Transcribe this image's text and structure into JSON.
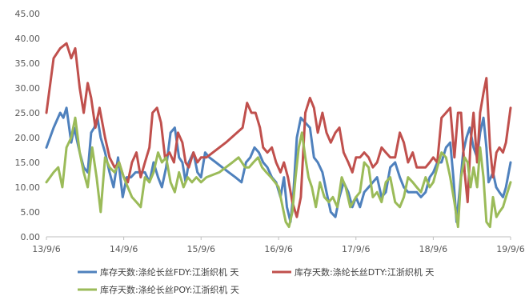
{
  "chart_data": {
    "type": "line",
    "title": "",
    "xlabel": "",
    "ylabel": "",
    "ylim": [
      0,
      45
    ],
    "yticks": [
      "0.00",
      "5.00",
      "10.00",
      "15.00",
      "20.00",
      "25.00",
      "30.00",
      "35.00",
      "40.00",
      "45.00"
    ],
    "xlim": [
      "2013-09-06",
      "2019-09-06"
    ],
    "xticks": [
      "13/9/6",
      "14/9/6",
      "15/9/6",
      "16/9/6",
      "17/9/6",
      "18/9/6",
      "19/9/6"
    ],
    "grid": false,
    "legend_position": "bottom",
    "series": [
      {
        "name": "库存天数:涤纶长丝FDY:江浙织机 天",
        "color": "#4F81BD",
        "x": [
          "2013-09-06",
          "2013-10-10",
          "2013-11-10",
          "2013-11-25",
          "2013-12-10",
          "2014-01-01",
          "2014-01-15",
          "2014-02-10",
          "2014-03-01",
          "2014-03-20",
          "2014-04-05",
          "2014-04-20",
          "2014-05-05",
          "2014-05-20",
          "2014-06-10",
          "2014-07-01",
          "2014-07-20",
          "2014-08-10",
          "2014-09-01",
          "2014-09-20",
          "2014-10-10",
          "2014-11-01",
          "2014-11-20",
          "2014-12-15",
          "2015-01-05",
          "2015-01-25",
          "2015-02-15",
          "2015-03-05",
          "2015-03-25",
          "2015-04-15",
          "2015-05-05",
          "2015-05-25",
          "2015-06-10",
          "2015-06-25",
          "2015-07-10",
          "2015-08-01",
          "2015-08-20",
          "2015-09-06",
          "2015-09-25",
          "2015-10-15",
          "2015-11-15",
          "2015-12-15",
          "2016-01-15",
          "2016-02-15",
          "2016-03-15",
          "2016-04-05",
          "2016-04-25",
          "2016-05-15",
          "2016-06-05",
          "2016-06-25",
          "2016-07-15",
          "2016-08-05",
          "2016-08-25",
          "2016-09-15",
          "2016-10-01",
          "2016-10-15",
          "2016-11-01",
          "2016-11-15",
          "2016-12-01",
          "2016-12-20",
          "2017-01-10",
          "2017-02-01",
          "2017-02-20",
          "2017-03-10",
          "2017-04-01",
          "2017-04-20",
          "2017-05-10",
          "2017-06-01",
          "2017-06-20",
          "2017-07-10",
          "2017-08-01",
          "2017-08-20",
          "2017-09-06",
          "2017-09-25",
          "2017-10-15",
          "2017-11-05",
          "2017-11-25",
          "2017-12-15",
          "2018-01-05",
          "2018-01-25",
          "2018-02-15",
          "2018-03-10",
          "2018-04-01",
          "2018-04-20",
          "2018-05-10",
          "2018-06-01",
          "2018-06-20",
          "2018-07-10",
          "2018-08-01",
          "2018-08-20",
          "2018-09-06",
          "2018-09-25",
          "2018-10-15",
          "2018-11-05",
          "2018-11-25",
          "2018-12-10",
          "2018-12-25",
          "2019-01-10",
          "2019-01-25",
          "2019-02-10",
          "2019-02-25",
          "2019-03-15",
          "2019-04-01",
          "2019-04-15",
          "2019-05-01",
          "2019-05-15",
          "2019-05-25",
          "2019-06-05",
          "2019-06-15",
          "2019-06-30",
          "2019-07-15",
          "2019-08-01",
          "2019-08-15",
          "2019-09-06"
        ],
        "y": [
          18,
          22,
          25,
          24,
          26,
          19,
          22,
          17,
          14,
          13,
          21,
          22,
          24,
          20,
          17,
          13,
          10,
          16,
          8,
          12,
          12,
          13,
          13,
          13,
          11,
          15,
          12,
          10,
          14,
          21,
          22,
          16,
          15,
          11,
          15,
          17,
          13,
          12,
          17,
          16,
          15,
          14,
          13,
          12,
          11,
          15,
          16,
          18,
          17,
          15,
          14,
          12,
          11,
          8,
          12,
          6,
          3,
          9,
          20,
          24,
          23,
          22,
          16,
          15,
          13,
          9,
          5,
          4,
          8,
          11,
          9,
          6,
          8,
          6,
          9,
          10,
          11,
          12,
          8,
          9,
          14,
          15,
          12,
          10,
          9,
          9,
          9,
          8,
          9,
          12,
          13,
          15,
          15,
          18,
          19,
          12,
          3,
          10,
          17,
          20,
          22,
          18,
          16,
          21,
          24,
          18,
          11,
          12,
          13,
          10,
          9,
          8,
          10,
          15
        ]
      },
      {
        "name": "库存天数:涤纶长丝DTY:江浙织机 天",
        "color": "#C0504D",
        "x": [
          "2013-09-06",
          "2013-10-10",
          "2013-11-10",
          "2013-12-10",
          "2014-01-01",
          "2014-01-20",
          "2014-02-10",
          "2014-03-01",
          "2014-03-20",
          "2014-04-05",
          "2014-04-25",
          "2014-05-15",
          "2014-06-10",
          "2014-07-01",
          "2014-07-25",
          "2014-08-15",
          "2014-09-06",
          "2014-09-25",
          "2014-10-15",
          "2014-11-05",
          "2014-11-25",
          "2014-12-15",
          "2015-01-05",
          "2015-01-20",
          "2015-02-10",
          "2015-03-01",
          "2015-03-20",
          "2015-04-10",
          "2015-05-01",
          "2015-05-20",
          "2015-06-10",
          "2015-06-25",
          "2015-07-10",
          "2015-08-01",
          "2015-08-20",
          "2015-09-06",
          "2015-10-01",
          "2016-01-01",
          "2016-03-20",
          "2016-04-10",
          "2016-05-01",
          "2016-05-20",
          "2016-06-10",
          "2016-06-25",
          "2016-07-15",
          "2016-08-05",
          "2016-08-25",
          "2016-09-15",
          "2016-10-01",
          "2016-10-20",
          "2016-11-10",
          "2016-12-01",
          "2016-12-20",
          "2017-01-10",
          "2017-02-01",
          "2017-02-20",
          "2017-03-10",
          "2017-04-01",
          "2017-04-20",
          "2017-05-10",
          "2017-06-01",
          "2017-06-20",
          "2017-07-10",
          "2017-08-01",
          "2017-08-20",
          "2017-09-06",
          "2017-09-25",
          "2017-10-15",
          "2017-11-05",
          "2017-11-25",
          "2017-12-15",
          "2018-01-05",
          "2018-01-25",
          "2018-02-15",
          "2018-03-10",
          "2018-04-01",
          "2018-04-20",
          "2018-05-10",
          "2018-06-01",
          "2018-06-20",
          "2018-07-10",
          "2018-08-01",
          "2018-08-20",
          "2018-09-06",
          "2018-09-25",
          "2018-10-15",
          "2018-11-05",
          "2018-11-25",
          "2018-12-15",
          "2019-01-01",
          "2019-01-15",
          "2019-02-01",
          "2019-02-15",
          "2019-03-01",
          "2019-03-15",
          "2019-04-01",
          "2019-04-15",
          "2019-05-01",
          "2019-05-15",
          "2019-06-01",
          "2019-06-15",
          "2019-07-01",
          "2019-07-15",
          "2019-08-01",
          "2019-08-15",
          "2019-09-06"
        ],
        "y": [
          25,
          36,
          38,
          39,
          36,
          38,
          30,
          25,
          31,
          28,
          22,
          26,
          20,
          16,
          14,
          15,
          12,
          11,
          15,
          17,
          12,
          15,
          18,
          25,
          26,
          23,
          16,
          17,
          15,
          21,
          19,
          15,
          14,
          17,
          15,
          16,
          16,
          19,
          22,
          27,
          25,
          25,
          22,
          18,
          17,
          18,
          15,
          13,
          15,
          12,
          7,
          4,
          8,
          25,
          28,
          26,
          21,
          25,
          21,
          19,
          21,
          22,
          17,
          15,
          13,
          16,
          16,
          17,
          16,
          14,
          15,
          18,
          17,
          16,
          16,
          21,
          19,
          15,
          17,
          14,
          14,
          14,
          15,
          16,
          15,
          24,
          25,
          26,
          16,
          25,
          25,
          13,
          7,
          19,
          25,
          15,
          25,
          29,
          32,
          18,
          12,
          17,
          18,
          17,
          19,
          26
        ]
      },
      {
        "name": "库存天数:涤纶长丝POY:江浙织机 天",
        "color": "#9BBB59",
        "x": [
          "2013-09-06",
          "2013-10-10",
          "2013-11-01",
          "2013-11-20",
          "2013-12-10",
          "2014-01-01",
          "2014-01-20",
          "2014-02-10",
          "2014-03-01",
          "2014-03-20",
          "2014-04-10",
          "2014-05-01",
          "2014-05-20",
          "2014-06-10",
          "2014-07-01",
          "2014-07-25",
          "2014-08-15",
          "2014-09-06",
          "2014-09-25",
          "2014-10-15",
          "2014-11-05",
          "2014-11-25",
          "2014-12-15",
          "2015-01-05",
          "2015-01-25",
          "2015-02-15",
          "2015-03-05",
          "2015-03-25",
          "2015-04-15",
          "2015-05-05",
          "2015-05-25",
          "2015-06-15",
          "2015-07-05",
          "2015-07-25",
          "2015-08-15",
          "2015-09-06",
          "2015-10-01",
          "2015-12-01",
          "2016-01-01",
          "2016-02-01",
          "2016-03-01",
          "2016-04-01",
          "2016-04-20",
          "2016-05-10",
          "2016-06-01",
          "2016-06-20",
          "2016-07-10",
          "2016-08-01",
          "2016-08-20",
          "2016-09-06",
          "2016-09-25",
          "2016-10-10",
          "2016-10-25",
          "2016-11-10",
          "2016-11-25",
          "2016-12-10",
          "2016-12-25",
          "2017-01-10",
          "2017-01-25",
          "2017-02-10",
          "2017-03-01",
          "2017-03-20",
          "2017-04-10",
          "2017-05-01",
          "2017-05-20",
          "2017-06-10",
          "2017-07-01",
          "2017-07-20",
          "2017-08-10",
          "2017-09-06",
          "2017-09-25",
          "2017-10-15",
          "2017-11-05",
          "2017-11-25",
          "2017-12-15",
          "2018-01-05",
          "2018-01-25",
          "2018-02-15",
          "2018-03-10",
          "2018-04-01",
          "2018-04-20",
          "2018-05-10",
          "2018-06-01",
          "2018-06-20",
          "2018-07-10",
          "2018-08-01",
          "2018-08-20",
          "2018-09-06",
          "2018-09-25",
          "2018-10-15",
          "2018-11-05",
          "2018-11-25",
          "2018-12-15",
          "2019-01-01",
          "2019-01-15",
          "2019-02-01",
          "2019-02-15",
          "2019-03-01",
          "2019-03-15",
          "2019-04-01",
          "2019-04-15",
          "2019-05-01",
          "2019-05-15",
          "2019-06-01",
          "2019-06-15",
          "2019-07-01",
          "2019-07-15",
          "2019-08-01",
          "2019-08-15",
          "2019-09-06"
        ],
        "y": [
          11,
          13,
          14,
          10,
          18,
          20,
          24,
          17,
          13,
          10,
          18,
          12,
          5,
          16,
          14,
          13,
          15,
          12,
          10,
          8,
          7,
          6,
          12,
          11,
          13,
          17,
          15,
          16,
          11,
          9,
          13,
          10,
          12,
          11,
          12,
          11,
          12,
          13,
          14,
          15,
          16,
          14,
          14,
          15,
          16,
          14,
          13,
          12,
          11,
          10,
          6,
          3,
          2,
          5,
          12,
          18,
          21,
          16,
          12,
          10,
          6,
          11,
          8,
          7,
          8,
          6,
          12,
          10,
          6,
          8,
          9,
          15,
          14,
          8,
          9,
          7,
          11,
          12,
          7,
          6,
          8,
          12,
          11,
          10,
          9,
          12,
          10,
          11,
          14,
          17,
          16,
          12,
          7,
          2,
          12,
          16,
          15,
          10,
          14,
          10,
          18,
          12,
          3,
          2,
          8,
          4,
          5,
          6,
          8,
          11
        ]
      }
    ]
  }
}
